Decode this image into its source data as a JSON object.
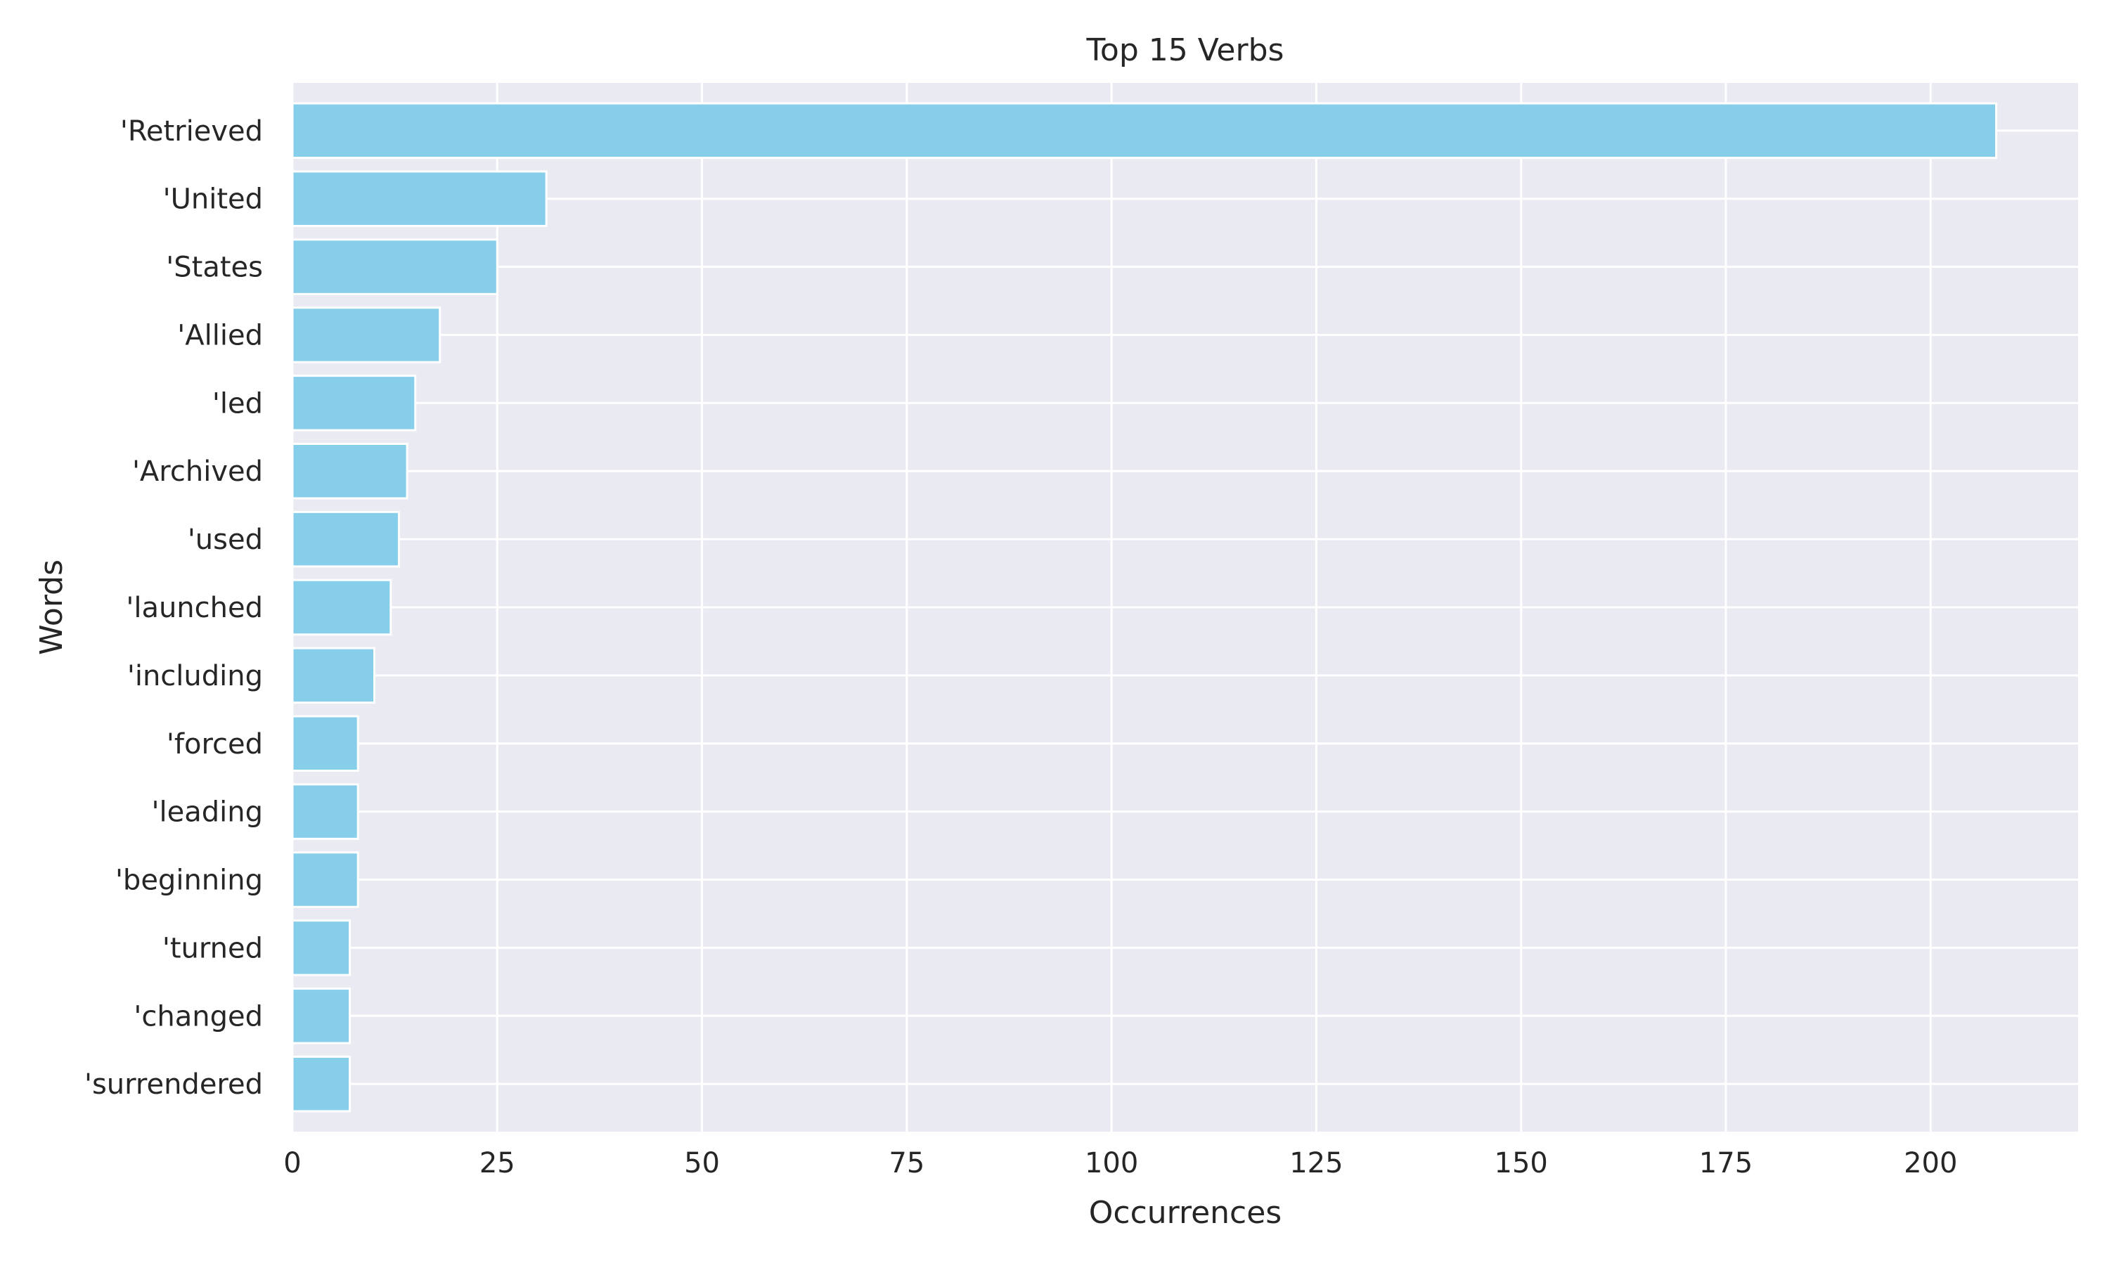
{
  "chart_data": {
    "type": "bar",
    "orientation": "horizontal",
    "title": "Top 15 Verbs",
    "xlabel": "Occurrences",
    "ylabel": "Words",
    "categories": [
      "'Retrieved",
      "'United",
      "'States",
      "'Allied",
      "'led",
      "'Archived",
      "'used",
      "'launched",
      "'including",
      "'forced",
      "'leading",
      "'beginning",
      "'turned",
      "'changed",
      "'surrendered"
    ],
    "values": [
      208,
      31,
      25,
      18,
      15,
      14,
      13,
      12,
      10,
      8,
      8,
      8,
      7,
      7,
      7
    ],
    "xlim": [
      0,
      218
    ],
    "xticks": [
      0,
      25,
      50,
      75,
      100,
      125,
      150,
      175,
      200
    ],
    "grid": true,
    "bar_color": "#87CEEB",
    "background_color": "#EAEAF2",
    "grid_color": "#FFFFFF"
  }
}
